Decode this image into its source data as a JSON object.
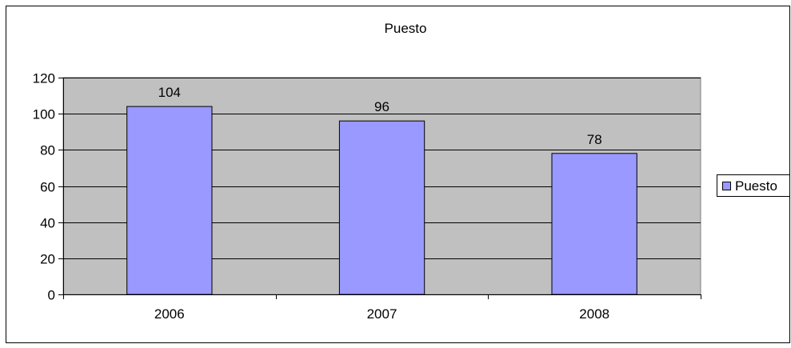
{
  "chart_data": {
    "type": "bar",
    "title": "Puesto",
    "categories": [
      "2006",
      "2007",
      "2008"
    ],
    "series": [
      {
        "name": "Puesto",
        "values": [
          104,
          96,
          78
        ]
      }
    ],
    "data_labels": [
      "104",
      "96",
      "78"
    ],
    "xlabel": "",
    "ylabel": "",
    "ylim": [
      0,
      120
    ],
    "yticks": [
      0,
      20,
      40,
      60,
      80,
      100,
      120
    ],
    "ytick_labels": [
      "0",
      "20",
      "40",
      "60",
      "80",
      "100",
      "120"
    ],
    "grid": true,
    "legend": {
      "position": "right",
      "entries": [
        "Puesto"
      ]
    },
    "colors": {
      "bar_fill": "#9999ff",
      "bar_stroke": "#000000",
      "plot_background": "#c0c0c0",
      "gridline": "#000000",
      "frame_border": "#000000"
    }
  }
}
